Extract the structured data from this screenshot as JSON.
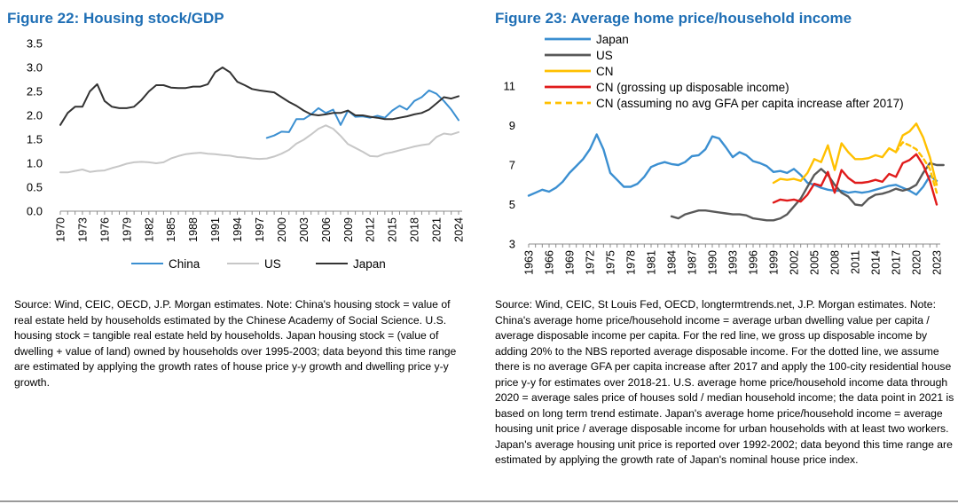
{
  "figures": [
    {
      "title": "Figure 22: Housing stock/GDP",
      "source": "Source: Wind, CEIC, OECD, J.P. Morgan estimates. Note: China's housing stock = value of real estate held by households estimated by the Chinese Academy of Social Science. U.S. housing stock = tangible real estate held by households. Japan housing stock = (value of dwelling + value of land) owned by households over 1995-2003; data beyond this time range are estimated by applying the growth rates of house price y-y growth and dwelling price y-y growth."
    },
    {
      "title": "Figure 23: Average home price/household income",
      "source": "Source: Wind, CEIC, St Louis Fed, OECD, longtermtrends.net, J.P. Morgan estimates. Note: China's average home price/household income = average urban dwelling value per capita / average disposable income per capita. For the red line, we gross up disposable income by adding 20% to the NBS reported average disposable income. For the dotted line, we assume there is no average GFA per capita increase after 2017 and apply the 100-city residential house price y-y for estimates over 2018-21. U.S. average home price/household income data through 2020 = average sales price of houses sold / median household income; the data point in 2021 is based on long term trend estimate. Japan's average home price/household income = average housing unit price / average disposable income for urban households with at least two workers. Japan's average housing unit price is reported over 1992-2002; data beyond this time range are estimated by applying the growth rate of Japan's nominal house price index."
    }
  ],
  "chart_data": [
    {
      "type": "line",
      "title": "Figure 22: Housing stock/GDP",
      "xlabel": "",
      "ylabel": "",
      "xlim": [
        1970,
        2024
      ],
      "ylim": [
        0,
        3.5
      ],
      "yticks": [
        "0.0",
        "0.5",
        "1.0",
        "1.5",
        "2.0",
        "2.5",
        "3.0",
        "3.5"
      ],
      "yticks_values": [
        0,
        0.5,
        1.0,
        1.5,
        2.0,
        2.5,
        3.0,
        3.5
      ],
      "xticks": [
        "1970",
        "1973",
        "1976",
        "1979",
        "1982",
        "1985",
        "1988",
        "1991",
        "1994",
        "1997",
        "2000",
        "2003",
        "2006",
        "2009",
        "2012",
        "2015",
        "2018",
        "2021",
        "2024"
      ],
      "legend_position": "bottom",
      "grid": false,
      "series": [
        {
          "name": "China",
          "color": "#3b8fd1",
          "x": [
            1998,
            1999,
            2000,
            2001,
            2002,
            2003,
            2004,
            2005,
            2006,
            2007,
            2008,
            2009,
            2010,
            2011,
            2012,
            2013,
            2014,
            2015,
            2016,
            2017,
            2018,
            2019,
            2020,
            2021,
            2022,
            2023,
            2024
          ],
          "y": [
            1.53,
            1.58,
            1.66,
            1.65,
            1.92,
            1.92,
            2.02,
            2.15,
            2.05,
            2.12,
            1.8,
            2.1,
            1.97,
            1.98,
            1.95,
            1.99,
            1.95,
            2.1,
            2.2,
            2.12,
            2.3,
            2.38,
            2.52,
            2.45,
            2.3,
            2.12,
            1.9
          ]
        },
        {
          "name": "US",
          "color": "#c7c7c7",
          "x": [
            1970,
            1971,
            1972,
            1973,
            1974,
            1975,
            1976,
            1977,
            1978,
            1979,
            1980,
            1981,
            1982,
            1983,
            1984,
            1985,
            1986,
            1987,
            1988,
            1989,
            1990,
            1991,
            1992,
            1993,
            1994,
            1995,
            1996,
            1997,
            1998,
            1999,
            2000,
            2001,
            2002,
            2003,
            2004,
            2005,
            2006,
            2007,
            2008,
            2009,
            2010,
            2011,
            2012,
            2013,
            2014,
            2015,
            2016,
            2017,
            2018,
            2019,
            2020,
            2021,
            2022,
            2023,
            2024
          ],
          "y": [
            0.81,
            0.81,
            0.84,
            0.87,
            0.82,
            0.84,
            0.85,
            0.9,
            0.94,
            0.99,
            1.02,
            1.03,
            1.02,
            1.0,
            1.02,
            1.1,
            1.15,
            1.19,
            1.21,
            1.22,
            1.2,
            1.19,
            1.17,
            1.16,
            1.13,
            1.12,
            1.1,
            1.09,
            1.1,
            1.14,
            1.2,
            1.28,
            1.41,
            1.49,
            1.6,
            1.72,
            1.79,
            1.72,
            1.57,
            1.4,
            1.32,
            1.24,
            1.15,
            1.14,
            1.2,
            1.23,
            1.27,
            1.31,
            1.35,
            1.38,
            1.4,
            1.55,
            1.62,
            1.6,
            1.65
          ]
        },
        {
          "name": "Japan",
          "color": "#333333",
          "x": [
            1970,
            1971,
            1972,
            1973,
            1974,
            1975,
            1976,
            1977,
            1978,
            1979,
            1980,
            1981,
            1982,
            1983,
            1984,
            1985,
            1986,
            1987,
            1988,
            1989,
            1990,
            1991,
            1992,
            1993,
            1994,
            1995,
            1996,
            1997,
            1998,
            1999,
            2000,
            2001,
            2002,
            2003,
            2004,
            2005,
            2006,
            2007,
            2008,
            2009,
            2010,
            2011,
            2012,
            2013,
            2014,
            2015,
            2016,
            2017,
            2018,
            2019,
            2020,
            2021,
            2022,
            2023,
            2024
          ],
          "y": [
            1.8,
            2.05,
            2.18,
            2.18,
            2.5,
            2.65,
            2.3,
            2.18,
            2.15,
            2.15,
            2.18,
            2.32,
            2.5,
            2.63,
            2.63,
            2.58,
            2.57,
            2.57,
            2.6,
            2.6,
            2.65,
            2.9,
            3.0,
            2.9,
            2.7,
            2.63,
            2.55,
            2.52,
            2.5,
            2.48,
            2.38,
            2.28,
            2.2,
            2.1,
            2.02,
            2.0,
            2.02,
            2.05,
            2.05,
            2.1,
            2.0,
            2.0,
            1.97,
            1.95,
            1.92,
            1.92,
            1.95,
            1.98,
            2.02,
            2.05,
            2.12,
            2.25,
            2.38,
            2.35,
            2.4
          ]
        }
      ]
    },
    {
      "type": "line",
      "title": "Figure 23: Average home price/household income",
      "xlabel": "",
      "ylabel": "",
      "xlim": [
        1963,
        2023
      ],
      "ylim": [
        3,
        11
      ],
      "yticks": [
        "3",
        "5",
        "7",
        "9",
        "11"
      ],
      "yticks_values": [
        3,
        5,
        7,
        9,
        11
      ],
      "xticks": [
        "1963",
        "1966",
        "1969",
        "1972",
        "1975",
        "1978",
        "1981",
        "1984",
        "1987",
        "1990",
        "1993",
        "1996",
        "1999",
        "2002",
        "2005",
        "2008",
        "2011",
        "2014",
        "2017",
        "2020",
        "2023"
      ],
      "legend_position": "top-left",
      "grid": false,
      "series": [
        {
          "name": "Japan",
          "color": "#3b8fd1",
          "dashed": false,
          "x": [
            1963,
            1964,
            1965,
            1966,
            1967,
            1968,
            1969,
            1970,
            1971,
            1972,
            1973,
            1974,
            1975,
            1976,
            1977,
            1978,
            1979,
            1980,
            1981,
            1982,
            1983,
            1984,
            1985,
            1986,
            1987,
            1988,
            1989,
            1990,
            1991,
            1992,
            1993,
            1994,
            1995,
            1996,
            1997,
            1998,
            1999,
            2000,
            2001,
            2002,
            2003,
            2004,
            2005,
            2006,
            2007,
            2008,
            2009,
            2010,
            2011,
            2012,
            2013,
            2014,
            2015,
            2016,
            2017,
            2018,
            2019,
            2020,
            2021,
            2022,
            2023
          ],
          "y": [
            5.45,
            5.6,
            5.75,
            5.65,
            5.85,
            6.15,
            6.6,
            6.95,
            7.3,
            7.8,
            8.55,
            7.8,
            6.6,
            6.25,
            5.9,
            5.9,
            6.05,
            6.4,
            6.9,
            7.05,
            7.15,
            7.05,
            7.0,
            7.15,
            7.45,
            7.5,
            7.8,
            8.45,
            8.35,
            7.9,
            7.4,
            7.65,
            7.5,
            7.2,
            7.1,
            6.95,
            6.65,
            6.7,
            6.6,
            6.8,
            6.5,
            6.1,
            6.0,
            5.85,
            5.75,
            5.7,
            5.7,
            5.6,
            5.65,
            5.6,
            5.65,
            5.75,
            5.85,
            5.95,
            6.0,
            5.85,
            5.7,
            5.5,
            5.9,
            6.45,
            6.2
          ]
        },
        {
          "name": "US",
          "color": "#595959",
          "dashed": false,
          "x": [
            1984,
            1985,
            1986,
            1987,
            1988,
            1989,
            1990,
            1991,
            1992,
            1993,
            1994,
            1995,
            1996,
            1997,
            1998,
            1999,
            2000,
            2001,
            2002,
            2003,
            2004,
            2005,
            2006,
            2007,
            2008,
            2009,
            2010,
            2011,
            2012,
            2013,
            2014,
            2015,
            2016,
            2017,
            2018,
            2019,
            2020,
            2021,
            2022,
            2023,
            2024
          ],
          "y": [
            4.4,
            4.3,
            4.5,
            4.6,
            4.7,
            4.7,
            4.65,
            4.6,
            4.55,
            4.5,
            4.5,
            4.45,
            4.3,
            4.25,
            4.2,
            4.2,
            4.3,
            4.5,
            4.9,
            5.3,
            5.9,
            6.5,
            6.8,
            6.5,
            6.0,
            5.6,
            5.4,
            5.0,
            4.95,
            5.3,
            5.5,
            5.55,
            5.65,
            5.8,
            5.7,
            5.8,
            6.0,
            6.6,
            7.1,
            7.0,
            7.0
          ]
        },
        {
          "name": "CN",
          "color": "#ffc000",
          "dashed": false,
          "x": [
            1999,
            2000,
            2001,
            2002,
            2003,
            2004,
            2005,
            2006,
            2007,
            2008,
            2009,
            2010,
            2011,
            2012,
            2013,
            2014,
            2015,
            2016,
            2017,
            2018,
            2019,
            2020,
            2021,
            2022,
            2023
          ],
          "y": [
            6.1,
            6.3,
            6.25,
            6.3,
            6.2,
            6.6,
            7.3,
            7.15,
            8.0,
            6.75,
            8.1,
            7.65,
            7.3,
            7.3,
            7.35,
            7.5,
            7.4,
            7.85,
            7.65,
            8.5,
            8.7,
            9.1,
            8.4,
            7.4,
            6.0
          ]
        },
        {
          "name": "CN (grossing up disposable income)",
          "color": "#e01b1b",
          "dashed": false,
          "x": [
            1999,
            2000,
            2001,
            2002,
            2003,
            2004,
            2005,
            2006,
            2007,
            2008,
            2009,
            2010,
            2011,
            2012,
            2013,
            2014,
            2015,
            2016,
            2017,
            2018,
            2019,
            2020,
            2021,
            2022,
            2023
          ],
          "y": [
            5.1,
            5.25,
            5.2,
            5.25,
            5.15,
            5.5,
            6.05,
            5.95,
            6.65,
            5.6,
            6.75,
            6.35,
            6.1,
            6.1,
            6.15,
            6.25,
            6.15,
            6.55,
            6.4,
            7.1,
            7.25,
            7.55,
            7.0,
            6.2,
            5.0
          ]
        },
        {
          "name": "CN (assuming no avg GFA per capita increase after 2017)",
          "color": "#ffc000",
          "dashed": true,
          "x": [
            2017,
            2018,
            2019,
            2020,
            2021,
            2022,
            2023
          ],
          "y": [
            7.65,
            8.15,
            8.0,
            7.8,
            7.35,
            6.8,
            5.6
          ]
        }
      ]
    }
  ]
}
